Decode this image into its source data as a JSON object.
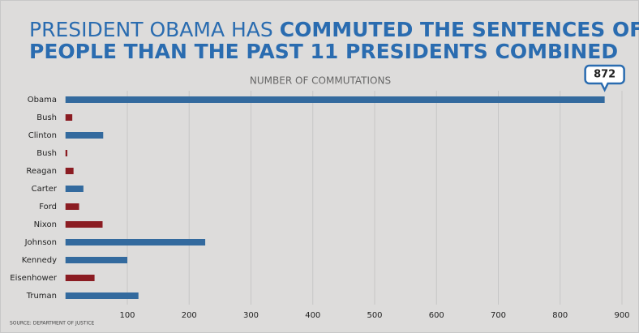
{
  "chart_data": {
    "type": "bar",
    "orientation": "horizontal",
    "title_plain": "PRESIDENT OBAMA HAS",
    "title_bold": [
      "COMMUTED THE SENTENCES OF MORE",
      "PEOPLE THAN THE PAST 11 PRESIDENTS COMBINED"
    ],
    "x_label": "NUMBER OF COMMUTATIONS",
    "source": "SOURCE: DEPARTMENT OF JUSTICE",
    "categories": [
      "Obama",
      "Bush",
      "Clinton",
      "Bush",
      "Reagan",
      "Carter",
      "Ford",
      "Nixon",
      "Johnson",
      "Kennedy",
      "Eisenhower",
      "Truman"
    ],
    "values": [
      872,
      11,
      61,
      3,
      13,
      29,
      22,
      60,
      226,
      100,
      47,
      118
    ],
    "colors": [
      "#336a9e",
      "#8b1c22",
      "#336a9e",
      "#8b1c22",
      "#8b1c22",
      "#336a9e",
      "#8b1c22",
      "#8b1c22",
      "#336a9e",
      "#336a9e",
      "#8b1c22",
      "#336a9e"
    ],
    "xlim": [
      0,
      900
    ],
    "xticks": [
      100,
      200,
      300,
      400,
      500,
      600,
      700,
      800,
      900
    ],
    "grid": true
  }
}
